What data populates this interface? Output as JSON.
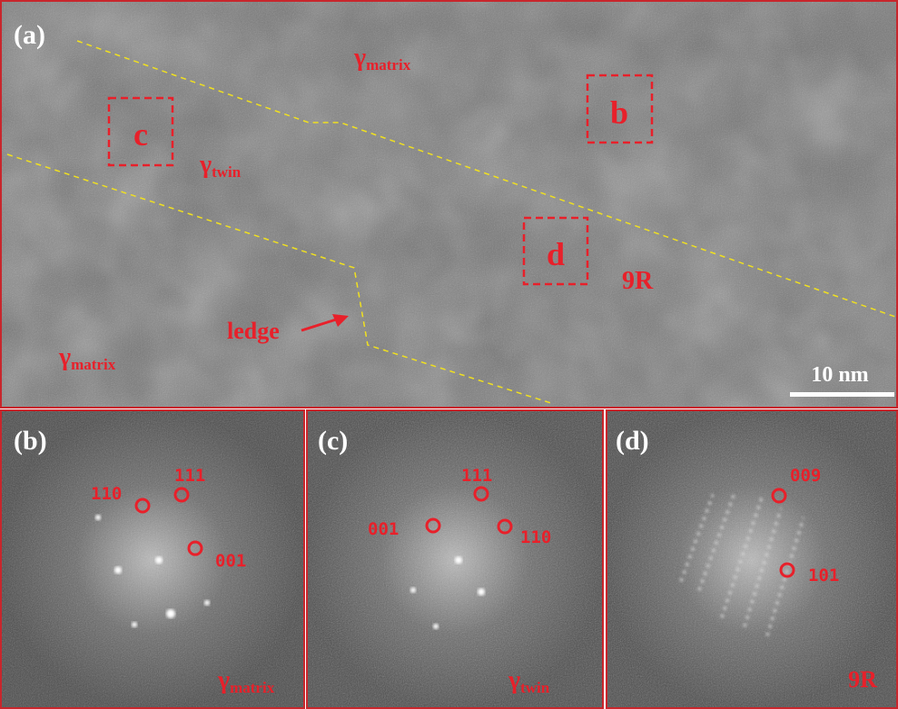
{
  "panel_a": {
    "label": "(a)",
    "phase_top": {
      "symbol": "γ",
      "subscript": "matrix"
    },
    "phase_twin": {
      "symbol": "γ",
      "subscript": "twin"
    },
    "phase_bottom": {
      "symbol": "γ",
      "subscript": "matrix"
    },
    "boxes": [
      "b",
      "c",
      "d"
    ],
    "phase_9r": "9R",
    "ledge": "ledge",
    "scale_bar": "10 nm"
  },
  "panel_b": {
    "label": "(b)",
    "spots": [
      "110",
      "111",
      "001"
    ],
    "phase": {
      "symbol": "γ",
      "subscript": "matrix"
    }
  },
  "panel_c": {
    "label": "(c)",
    "spots": [
      "111",
      "001",
      "110"
    ],
    "phase": {
      "symbol": "γ",
      "subscript": "twin"
    }
  },
  "panel_d": {
    "label": "(d)",
    "spots": [
      "009",
      "101"
    ],
    "phase": "9R"
  }
}
